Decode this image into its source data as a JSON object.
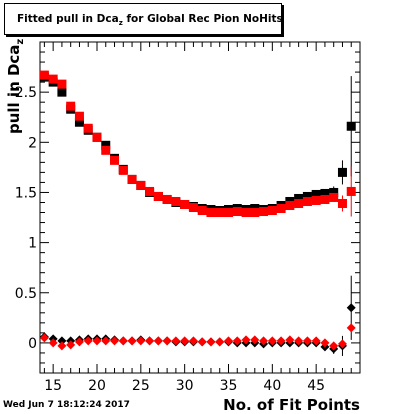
{
  "title": {
    "prefix": "Fitted pull in Dca",
    "subscript": "z",
    "suffix": " for Global Rec Pion NoHits"
  },
  "timestamp": "Wed Jun  7 18:12:24 2017",
  "chart_data": {
    "type": "scatter",
    "xlabel": "No. of Fit Points",
    "ylabel": "pull in Dca",
    "ylabel_subscript": "z",
    "xlim": [
      13.5,
      50
    ],
    "ylim": [
      -0.3,
      3.0
    ],
    "x_ticks": [
      15,
      20,
      25,
      30,
      35,
      40,
      45
    ],
    "y_ticks": [
      0,
      0.5,
      1,
      1.5,
      2,
      2.5
    ],
    "y_tick_labels": [
      "0",
      "0.5",
      "1",
      "1.5",
      "2",
      "2.5"
    ],
    "colors": {
      "black_series": "#000000",
      "red_series": "#ff0000"
    },
    "series": [
      {
        "marker": "square",
        "color": "black",
        "x": [
          14,
          15,
          16,
          17,
          18,
          19,
          20,
          21,
          22,
          23,
          24,
          25,
          26,
          27,
          28,
          29,
          30,
          31,
          32,
          33,
          34,
          35,
          36,
          37,
          38,
          39,
          40,
          41,
          42,
          43,
          44,
          45,
          46,
          47,
          48,
          49
        ],
        "y": [
          2.65,
          2.6,
          2.5,
          2.33,
          2.2,
          2.12,
          2.05,
          1.97,
          1.84,
          1.73,
          1.63,
          1.57,
          1.5,
          1.46,
          1.43,
          1.4,
          1.38,
          1.36,
          1.34,
          1.33,
          1.32,
          1.33,
          1.34,
          1.33,
          1.34,
          1.33,
          1.34,
          1.37,
          1.41,
          1.44,
          1.46,
          1.48,
          1.49,
          1.5,
          1.7,
          2.16
        ],
        "yerr": [
          0.02,
          0.02,
          0.02,
          0.02,
          0.02,
          0.02,
          0.02,
          0.02,
          0.02,
          0.02,
          0.02,
          0.02,
          0.02,
          0.02,
          0.02,
          0.02,
          0.02,
          0.02,
          0.02,
          0.02,
          0.02,
          0.02,
          0.02,
          0.02,
          0.02,
          0.02,
          0.02,
          0.02,
          0.02,
          0.02,
          0.03,
          0.03,
          0.04,
          0.06,
          0.12,
          0.5
        ]
      },
      {
        "marker": "square",
        "color": "red",
        "x": [
          14,
          15,
          16,
          17,
          18,
          19,
          20,
          21,
          22,
          23,
          24,
          25,
          26,
          27,
          28,
          29,
          30,
          31,
          32,
          33,
          34,
          35,
          36,
          37,
          38,
          39,
          40,
          41,
          42,
          43,
          44,
          45,
          46,
          47,
          48,
          49
        ],
        "y": [
          2.67,
          2.63,
          2.58,
          2.36,
          2.26,
          2.14,
          2.05,
          1.92,
          1.82,
          1.72,
          1.63,
          1.57,
          1.51,
          1.46,
          1.43,
          1.41,
          1.38,
          1.35,
          1.32,
          1.3,
          1.3,
          1.3,
          1.31,
          1.3,
          1.3,
          1.31,
          1.32,
          1.34,
          1.37,
          1.39,
          1.41,
          1.42,
          1.43,
          1.45,
          1.39,
          1.51
        ],
        "yerr": [
          0.02,
          0.02,
          0.02,
          0.02,
          0.02,
          0.02,
          0.02,
          0.02,
          0.02,
          0.02,
          0.02,
          0.02,
          0.02,
          0.02,
          0.02,
          0.02,
          0.02,
          0.02,
          0.02,
          0.02,
          0.02,
          0.02,
          0.02,
          0.02,
          0.02,
          0.02,
          0.02,
          0.02,
          0.02,
          0.02,
          0.02,
          0.02,
          0.03,
          0.04,
          0.08,
          0.25
        ]
      },
      {
        "marker": "diamond",
        "color": "black",
        "x": [
          14,
          15,
          16,
          17,
          18,
          19,
          20,
          21,
          22,
          23,
          24,
          25,
          26,
          27,
          28,
          29,
          30,
          31,
          32,
          33,
          34,
          35,
          36,
          37,
          38,
          39,
          40,
          41,
          42,
          43,
          44,
          45,
          46,
          47,
          48,
          49
        ],
        "y": [
          0.06,
          0.04,
          0.02,
          0.02,
          0.03,
          0.04,
          0.04,
          0.04,
          0.03,
          0.02,
          0.02,
          0.03,
          0.02,
          0.02,
          0.02,
          0.01,
          0.01,
          0.01,
          0.01,
          0.01,
          0.01,
          0.01,
          0.0,
          0.0,
          0.0,
          -0.01,
          0.0,
          0.0,
          0.0,
          0.0,
          0.0,
          0.0,
          -0.04,
          -0.06,
          -0.03,
          0.35
        ],
        "yerr": [
          0.01,
          0.01,
          0.01,
          0.01,
          0.01,
          0.01,
          0.01,
          0.01,
          0.01,
          0.01,
          0.01,
          0.01,
          0.01,
          0.01,
          0.01,
          0.01,
          0.01,
          0.01,
          0.01,
          0.01,
          0.01,
          0.01,
          0.01,
          0.01,
          0.01,
          0.01,
          0.01,
          0.01,
          0.01,
          0.01,
          0.01,
          0.02,
          0.03,
          0.05,
          0.1,
          0.32
        ]
      },
      {
        "marker": "diamond",
        "color": "red",
        "x": [
          14,
          15,
          16,
          17,
          18,
          19,
          20,
          21,
          22,
          23,
          24,
          25,
          26,
          27,
          28,
          29,
          30,
          31,
          32,
          33,
          34,
          35,
          36,
          37,
          38,
          39,
          40,
          41,
          42,
          43,
          44,
          45,
          46,
          47,
          48,
          49
        ],
        "y": [
          0.05,
          0.0,
          -0.03,
          -0.02,
          0.01,
          0.02,
          0.02,
          0.02,
          0.02,
          0.02,
          0.02,
          0.02,
          0.02,
          0.02,
          0.02,
          0.02,
          0.02,
          0.02,
          0.01,
          0.01,
          0.01,
          0.02,
          0.02,
          0.03,
          0.03,
          0.02,
          0.02,
          0.02,
          0.03,
          0.02,
          0.02,
          0.02,
          0.0,
          -0.03,
          -0.01,
          0.15
        ]
      }
    ]
  }
}
